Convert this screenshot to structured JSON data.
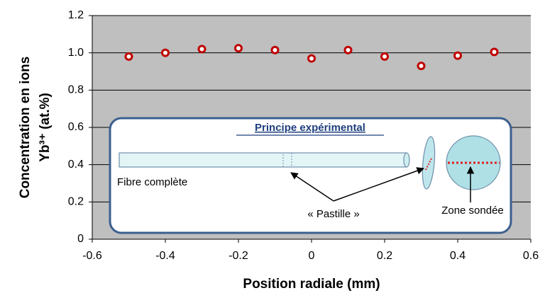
{
  "chart_data": {
    "type": "scatter",
    "x_label": "Position radiale (mm)",
    "y_label_lines": [
      "Concentration en ions",
      "Yb³⁺ (at.%)"
    ],
    "x": [
      -0.5,
      -0.4,
      -0.3,
      -0.2,
      -0.1,
      0,
      0.1,
      0.2,
      0.3,
      0.4,
      0.5
    ],
    "values": [
      0.98,
      1.0,
      1.02,
      1.025,
      1.015,
      0.97,
      1.015,
      0.98,
      0.93,
      0.985,
      1.005
    ],
    "color": "#c00000",
    "xlim": [
      -0.6,
      0.6
    ],
    "xticks": [
      -0.6,
      -0.4,
      -0.2,
      0,
      0.2,
      0.4,
      0.6
    ],
    "ylim": [
      0,
      1.2
    ],
    "yticks": [
      0,
      0.2,
      0.4,
      0.6,
      0.8,
      {
        "value": 1.0,
        "label": "1.0"
      },
      1.2
    ],
    "grid": true,
    "inset": {
      "title": "Principe expérimental",
      "fiber_label": "Fibre complète",
      "pellet_label": "« Pastille »",
      "zone_label": "Zone sondée"
    }
  }
}
